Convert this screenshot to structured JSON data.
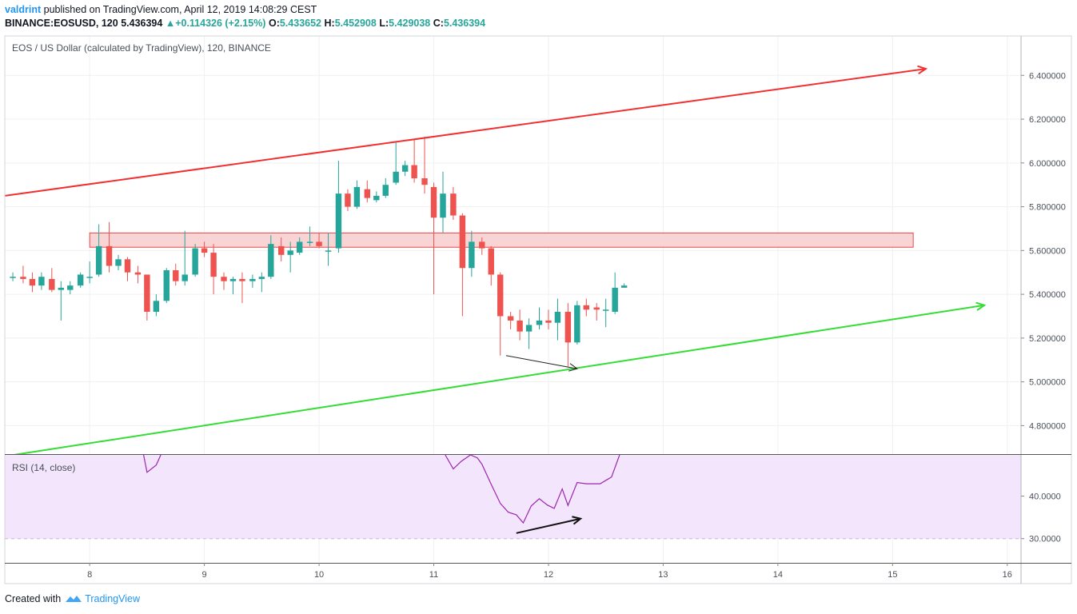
{
  "header": {
    "author": "valdrint",
    "published_text": "published on TradingView.com, April 12, 2019 14:08:29 CEST",
    "symbol_line": "BINANCE:EOSUSD, 120",
    "last_price": "5.436394",
    "change_arrow": "▲",
    "change": "+0.114326 (+2.15%)",
    "o_label": "O:",
    "o_value": "5.433652",
    "h_label": "H:",
    "h_value": "5.452908",
    "l_label": "L:",
    "l_value": "5.429038",
    "c_label": "C:",
    "c_value": "5.436394"
  },
  "chart_title": "EOS / US Dollar (calculated by TradingView), 120, BINANCE",
  "rsi_label": "RSI (14, close)",
  "footer": {
    "created_with": "Created with",
    "brand": "TradingView"
  },
  "colors": {
    "up": "#26a69a",
    "down": "#ef5350",
    "resistance": "#f23030",
    "support": "#33dd33",
    "zone_fill": "#f8d0d0",
    "zone_stroke": "#e33",
    "rsi_band": "#f3e5fc",
    "rsi_line": "#9c27b0"
  },
  "chart_data": [
    {
      "type": "candlestick",
      "xlabel": "",
      "ylabel": "",
      "x_ticks": [
        "8",
        "9",
        "10",
        "11",
        "12",
        "13",
        "14",
        "15",
        "16"
      ],
      "x_range_days": [
        7.26,
        16.12
      ],
      "y_ticks": [
        "4.800000",
        "5.000000",
        "5.200000",
        "5.400000",
        "5.600000",
        "5.800000",
        "6.000000",
        "6.200000",
        "6.400000"
      ],
      "ylim": [
        4.67,
        6.58
      ],
      "grid": true,
      "candles": [
        {
          "t": 7.33,
          "o": 5.48,
          "h": 5.5,
          "l": 5.46,
          "c": 5.48
        },
        {
          "t": 7.42,
          "o": 5.48,
          "h": 5.53,
          "l": 5.45,
          "c": 5.47
        },
        {
          "t": 7.5,
          "o": 5.47,
          "h": 5.5,
          "l": 5.41,
          "c": 5.44
        },
        {
          "t": 7.58,
          "o": 5.44,
          "h": 5.5,
          "l": 5.42,
          "c": 5.48
        },
        {
          "t": 7.67,
          "o": 5.47,
          "h": 5.52,
          "l": 5.41,
          "c": 5.42
        },
        {
          "t": 7.75,
          "o": 5.42,
          "h": 5.46,
          "l": 5.28,
          "c": 5.43
        },
        {
          "t": 7.83,
          "o": 5.42,
          "h": 5.46,
          "l": 5.4,
          "c": 5.44
        },
        {
          "t": 7.92,
          "o": 5.44,
          "h": 5.5,
          "l": 5.43,
          "c": 5.49
        },
        {
          "t": 8.0,
          "o": 5.48,
          "h": 5.55,
          "l": 5.45,
          "c": 5.48
        },
        {
          "t": 8.08,
          "o": 5.49,
          "h": 5.72,
          "l": 5.48,
          "c": 5.62
        },
        {
          "t": 8.17,
          "o": 5.62,
          "h": 5.73,
          "l": 5.5,
          "c": 5.53
        },
        {
          "t": 8.25,
          "o": 5.53,
          "h": 5.58,
          "l": 5.51,
          "c": 5.56
        },
        {
          "t": 8.33,
          "o": 5.56,
          "h": 5.57,
          "l": 5.46,
          "c": 5.5
        },
        {
          "t": 8.42,
          "o": 5.5,
          "h": 5.53,
          "l": 5.45,
          "c": 5.49
        },
        {
          "t": 8.5,
          "o": 5.49,
          "h": 5.49,
          "l": 5.28,
          "c": 5.32
        },
        {
          "t": 8.58,
          "o": 5.32,
          "h": 5.4,
          "l": 5.3,
          "c": 5.37
        },
        {
          "t": 8.67,
          "o": 5.37,
          "h": 5.52,
          "l": 5.36,
          "c": 5.51
        },
        {
          "t": 8.75,
          "o": 5.51,
          "h": 5.54,
          "l": 5.44,
          "c": 5.46
        },
        {
          "t": 8.83,
          "o": 5.46,
          "h": 5.69,
          "l": 5.44,
          "c": 5.49
        },
        {
          "t": 8.92,
          "o": 5.49,
          "h": 5.63,
          "l": 5.48,
          "c": 5.61
        },
        {
          "t": 9.0,
          "o": 5.61,
          "h": 5.64,
          "l": 5.57,
          "c": 5.59
        },
        {
          "t": 9.08,
          "o": 5.59,
          "h": 5.63,
          "l": 5.4,
          "c": 5.48
        },
        {
          "t": 9.17,
          "o": 5.48,
          "h": 5.5,
          "l": 5.42,
          "c": 5.46
        },
        {
          "t": 9.25,
          "o": 5.46,
          "h": 5.48,
          "l": 5.4,
          "c": 5.47
        },
        {
          "t": 9.33,
          "o": 5.47,
          "h": 5.5,
          "l": 5.36,
          "c": 5.46
        },
        {
          "t": 9.42,
          "o": 5.46,
          "h": 5.49,
          "l": 5.43,
          "c": 5.47
        },
        {
          "t": 9.5,
          "o": 5.47,
          "h": 5.5,
          "l": 5.41,
          "c": 5.48
        },
        {
          "t": 9.58,
          "o": 5.48,
          "h": 5.67,
          "l": 5.47,
          "c": 5.63
        },
        {
          "t": 9.67,
          "o": 5.62,
          "h": 5.66,
          "l": 5.55,
          "c": 5.58
        },
        {
          "t": 9.75,
          "o": 5.58,
          "h": 5.64,
          "l": 5.5,
          "c": 5.6
        },
        {
          "t": 9.83,
          "o": 5.59,
          "h": 5.66,
          "l": 5.58,
          "c": 5.64
        },
        {
          "t": 9.92,
          "o": 5.64,
          "h": 5.71,
          "l": 5.62,
          "c": 5.64
        },
        {
          "t": 10.0,
          "o": 5.64,
          "h": 5.68,
          "l": 5.61,
          "c": 5.62
        },
        {
          "t": 10.08,
          "o": 5.6,
          "h": 5.68,
          "l": 5.53,
          "c": 5.6
        },
        {
          "t": 10.17,
          "o": 5.61,
          "h": 6.01,
          "l": 5.59,
          "c": 5.86
        },
        {
          "t": 10.25,
          "o": 5.86,
          "h": 5.88,
          "l": 5.78,
          "c": 5.8
        },
        {
          "t": 10.33,
          "o": 5.8,
          "h": 5.92,
          "l": 5.79,
          "c": 5.89
        },
        {
          "t": 10.42,
          "o": 5.88,
          "h": 5.92,
          "l": 5.82,
          "c": 5.84
        },
        {
          "t": 10.5,
          "o": 5.83,
          "h": 5.87,
          "l": 5.82,
          "c": 5.85
        },
        {
          "t": 10.58,
          "o": 5.85,
          "h": 5.93,
          "l": 5.84,
          "c": 5.9
        },
        {
          "t": 10.67,
          "o": 5.91,
          "h": 6.1,
          "l": 5.9,
          "c": 5.96
        },
        {
          "t": 10.75,
          "o": 5.96,
          "h": 6.01,
          "l": 5.94,
          "c": 5.99
        },
        {
          "t": 10.83,
          "o": 5.99,
          "h": 6.11,
          "l": 5.91,
          "c": 5.93
        },
        {
          "t": 10.92,
          "o": 5.93,
          "h": 6.12,
          "l": 5.86,
          "c": 5.9
        },
        {
          "t": 11.0,
          "o": 5.89,
          "h": 5.91,
          "l": 5.4,
          "c": 5.75
        },
        {
          "t": 11.08,
          "o": 5.75,
          "h": 5.96,
          "l": 5.68,
          "c": 5.86
        },
        {
          "t": 11.17,
          "o": 5.86,
          "h": 5.89,
          "l": 5.74,
          "c": 5.76
        },
        {
          "t": 11.25,
          "o": 5.76,
          "h": 5.77,
          "l": 5.3,
          "c": 5.52
        },
        {
          "t": 11.33,
          "o": 5.52,
          "h": 5.69,
          "l": 5.48,
          "c": 5.64
        },
        {
          "t": 11.42,
          "o": 5.64,
          "h": 5.66,
          "l": 5.58,
          "c": 5.61
        },
        {
          "t": 11.5,
          "o": 5.61,
          "h": 5.62,
          "l": 5.44,
          "c": 5.49
        },
        {
          "t": 11.58,
          "o": 5.49,
          "h": 5.5,
          "l": 5.12,
          "c": 5.3
        },
        {
          "t": 11.67,
          "o": 5.3,
          "h": 5.32,
          "l": 5.24,
          "c": 5.28
        },
        {
          "t": 11.75,
          "o": 5.28,
          "h": 5.33,
          "l": 5.19,
          "c": 5.23
        },
        {
          "t": 11.83,
          "o": 5.23,
          "h": 5.29,
          "l": 5.15,
          "c": 5.26
        },
        {
          "t": 11.92,
          "o": 5.26,
          "h": 5.34,
          "l": 5.24,
          "c": 5.28
        },
        {
          "t": 12.0,
          "o": 5.28,
          "h": 5.33,
          "l": 5.24,
          "c": 5.27
        },
        {
          "t": 12.08,
          "o": 5.27,
          "h": 5.38,
          "l": 5.19,
          "c": 5.32
        },
        {
          "t": 12.17,
          "o": 5.32,
          "h": 5.36,
          "l": 5.07,
          "c": 5.18
        },
        {
          "t": 12.25,
          "o": 5.18,
          "h": 5.37,
          "l": 5.17,
          "c": 5.35
        },
        {
          "t": 12.33,
          "o": 5.35,
          "h": 5.38,
          "l": 5.3,
          "c": 5.33
        },
        {
          "t": 12.42,
          "o": 5.34,
          "h": 5.36,
          "l": 5.28,
          "c": 5.33
        },
        {
          "t": 12.5,
          "o": 5.33,
          "h": 5.38,
          "l": 5.25,
          "c": 5.33
        },
        {
          "t": 12.58,
          "o": 5.32,
          "h": 5.5,
          "l": 5.31,
          "c": 5.43
        },
        {
          "t": 12.66,
          "o": 5.43,
          "h": 5.45,
          "l": 5.43,
          "c": 5.44
        }
      ],
      "resistance_line": {
        "from": [
          7.26,
          5.85
        ],
        "to": [
          15.29,
          6.43
        ]
      },
      "support_line": {
        "from": [
          7.26,
          4.66
        ],
        "to": [
          15.8,
          5.35
        ]
      },
      "resistance_zone": {
        "from_x": 8.0,
        "to_x": 15.18,
        "low": 5.615,
        "high": 5.68
      },
      "price_divergence_arrow": {
        "from": [
          11.63,
          5.12
        ],
        "to": [
          12.25,
          5.06
        ]
      }
    },
    {
      "type": "line",
      "title": "RSI (14, close)",
      "y_ticks": [
        "30.0000",
        "40.0000"
      ],
      "ylim": [
        24.3,
        49.7
      ],
      "band": [
        30,
        70
      ],
      "x": [
        8.47,
        8.5,
        8.58,
        8.62,
        11.1,
        11.17,
        11.24,
        11.32,
        11.38,
        11.42,
        11.5,
        11.58,
        11.65,
        11.72,
        11.78,
        11.85,
        11.92,
        11.99,
        12.05,
        12.12,
        12.17,
        12.25,
        12.33,
        12.45,
        12.55,
        12.62
      ],
      "values": [
        49.7,
        45.6,
        47.3,
        49.7,
        49.7,
        46.4,
        48.2,
        49.7,
        49.0,
        47.5,
        42.8,
        38.3,
        36.2,
        35.6,
        33.7,
        37.7,
        39.4,
        37.9,
        37.1,
        41.7,
        37.8,
        43.2,
        42.9,
        42.9,
        44.5,
        49.7
      ],
      "divergence_arrow": {
        "from": [
          11.72,
          31.3
        ],
        "to": [
          12.28,
          34.7
        ]
      }
    }
  ]
}
